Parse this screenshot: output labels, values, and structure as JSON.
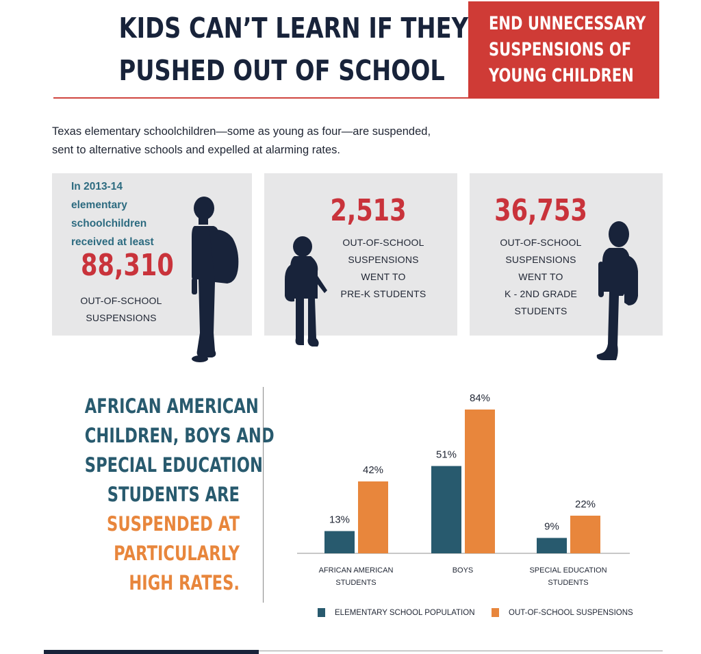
{
  "header": {
    "title_line1": "KIDS CAN’T LEARN IF THEY’RE",
    "title_line2": "PUSHED OUT OF SCHOOL",
    "callout_line1": "END UNNECESSARY",
    "callout_line2": "SUSPENSIONS OF",
    "callout_line3": "YOUNG CHILDREN"
  },
  "intro": {
    "line1": "Texas elementary schoolchildren—some as young as four—are suspended,",
    "line2": "sent to alternative schools and expelled at alarming rates."
  },
  "stats": [
    {
      "lead_lines": [
        "In 2013-14",
        "elementary",
        "schoolchildren",
        "received at least"
      ],
      "number": "88,310",
      "label_lines": [
        "OUT-OF-SCHOOL",
        "SUSPENSIONS"
      ]
    },
    {
      "number": "2,513",
      "label_lines": [
        "OUT-OF-SCHOOL",
        "SUSPENSIONS",
        "WENT TO",
        "PRE-K STUDENTS"
      ]
    },
    {
      "number": "36,753",
      "label_lines": [
        "OUT-OF-SCHOOL",
        "SUSPENSIONS",
        "WENT TO",
        "K - 2ND GRADE",
        "STUDENTS"
      ]
    }
  ],
  "statement": {
    "blue_lines": [
      "AFRICAN AMERICAN",
      "CHILDREN, BOYS AND",
      "SPECIAL EDUCATION",
      "STUDENTS ARE"
    ],
    "orange_lines": [
      "SUSPENDED AT",
      "PARTICULARLY",
      "HIGH RATES."
    ]
  },
  "colors": {
    "navy": "#18233a",
    "red": "#cf3b36",
    "teal_text": "#2d6b80",
    "bar_population": "#285a6e",
    "bar_suspensions": "#e8863c",
    "panel_gray": "#e7e7e8"
  },
  "chart_data": {
    "type": "bar",
    "categories": [
      [
        "AFRICAN AMERICAN",
        "STUDENTS"
      ],
      [
        "BOYS"
      ],
      [
        "SPECIAL EDUCATION",
        "STUDENTS"
      ]
    ],
    "series": [
      {
        "name": "ELEMENTARY SCHOOL POPULATION",
        "values": [
          13,
          51,
          9
        ],
        "color": "#285a6e"
      },
      {
        "name": "OUT-OF-SCHOOL SUSPENSIONS",
        "values": [
          42,
          84,
          22
        ],
        "color": "#e8863c"
      }
    ],
    "value_suffix": "%",
    "ylim": [
      0,
      84
    ],
    "grid": false,
    "legend_position": "bottom",
    "title": "",
    "xlabel": "",
    "ylabel": ""
  }
}
